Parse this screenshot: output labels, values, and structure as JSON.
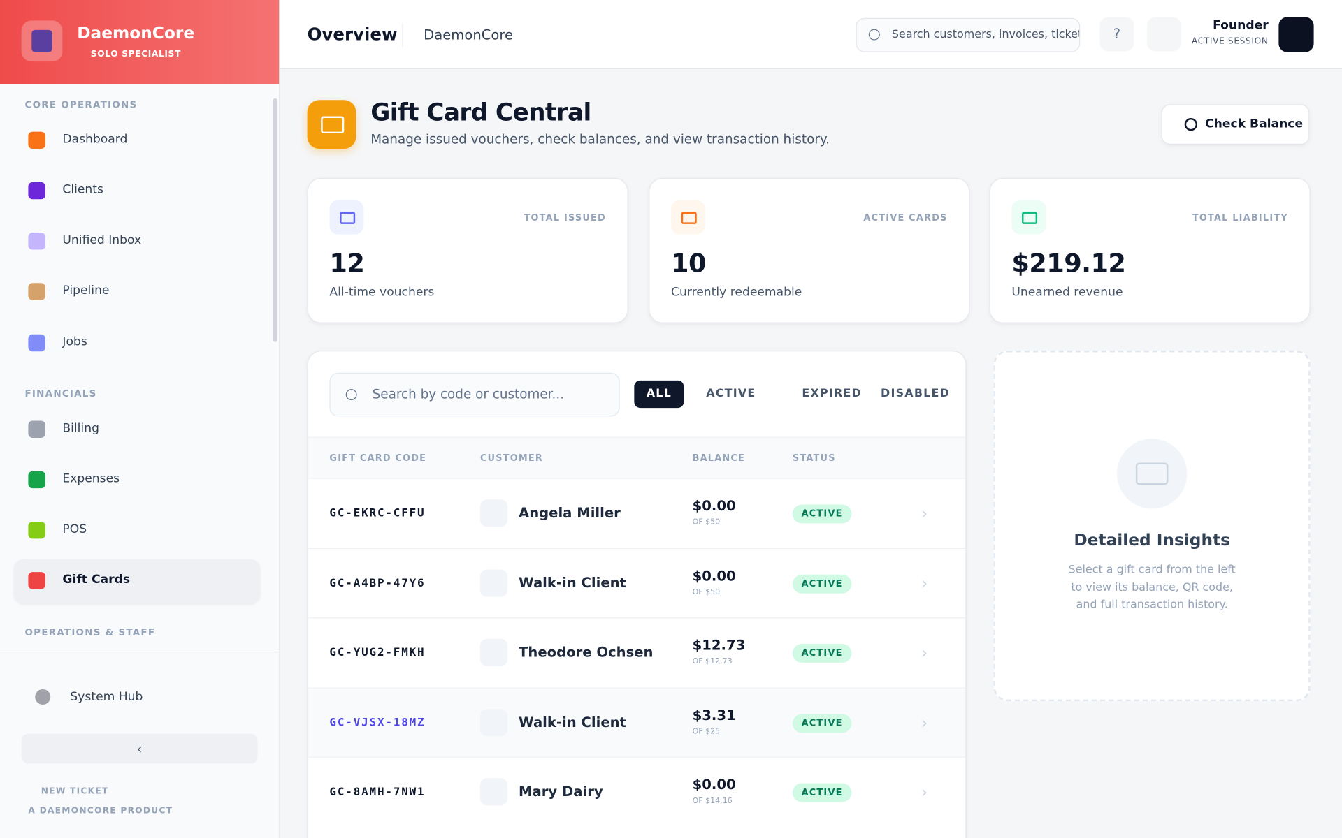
{
  "sidebar": {
    "brand": "DaemonCore",
    "role": "SOLO SPECIALIST",
    "sections": [
      {
        "title": "CORE OPERATIONS",
        "items": [
          "Dashboard",
          "Clients",
          "Unified Inbox",
          "Pipeline",
          "Jobs"
        ]
      },
      {
        "title": "FINANCIALS",
        "items": [
          "Billing",
          "Expenses",
          "POS",
          "Gift Cards"
        ]
      },
      {
        "title": "OPERATIONS & STAFF"
      }
    ],
    "system": "System Hub",
    "new_ticket": "NEW TICKET",
    "product": "A DAEMONCORE PRODUCT"
  },
  "topbar": {
    "title": "Overview",
    "workspace": "DaemonCore",
    "search_placeholder": "Search customers, invoices, tickets",
    "user": "Founder",
    "session": "ACTIVE SESSION"
  },
  "header": {
    "title": "Gift Card Central",
    "subtitle": "Manage issued vouchers, check balances, and view transaction history.",
    "action": "Check Balance"
  },
  "stats": [
    {
      "label": "TOTAL ISSUED",
      "value": "12",
      "caption": "All-time vouchers"
    },
    {
      "label": "ACTIVE CARDS",
      "value": "10",
      "caption": "Currently redeemable"
    },
    {
      "label": "TOTAL LIABILITY",
      "value": "$219.12",
      "caption": "Unearned revenue"
    }
  ],
  "table": {
    "search_placeholder": "Search by code or customer...",
    "filters": [
      "ALL",
      "ACTIVE",
      "EXPIRED",
      "DISABLED"
    ],
    "columns": [
      "GIFT CARD CODE",
      "CUSTOMER",
      "BALANCE",
      "STATUS"
    ],
    "rows": [
      {
        "code": "GC-EKRC-CFFU",
        "customer": "Angela Miller",
        "balance": "$0.00",
        "of": "OF $50",
        "status": "ACTIVE"
      },
      {
        "code": "GC-A4BP-47Y6",
        "customer": "Walk-in Client",
        "balance": "$0.00",
        "of": "OF $50",
        "status": "ACTIVE"
      },
      {
        "code": "GC-YUG2-FMKH",
        "customer": "Theodore Ochsen",
        "balance": "$12.73",
        "of": "OF $12.73",
        "status": "ACTIVE"
      },
      {
        "code": "GC-VJSX-18MZ",
        "customer": "Walk-in Client",
        "balance": "$3.31",
        "of": "OF $25",
        "status": "ACTIVE"
      },
      {
        "code": "GC-8AMH-7NW1",
        "customer": "Mary Dairy",
        "balance": "$0.00",
        "of": "OF $14.16",
        "status": "ACTIVE"
      }
    ]
  },
  "insights": {
    "title": "Detailed Insights",
    "text": "Select a gift card from the left to view its balance, QR code, and full transaction history."
  }
}
